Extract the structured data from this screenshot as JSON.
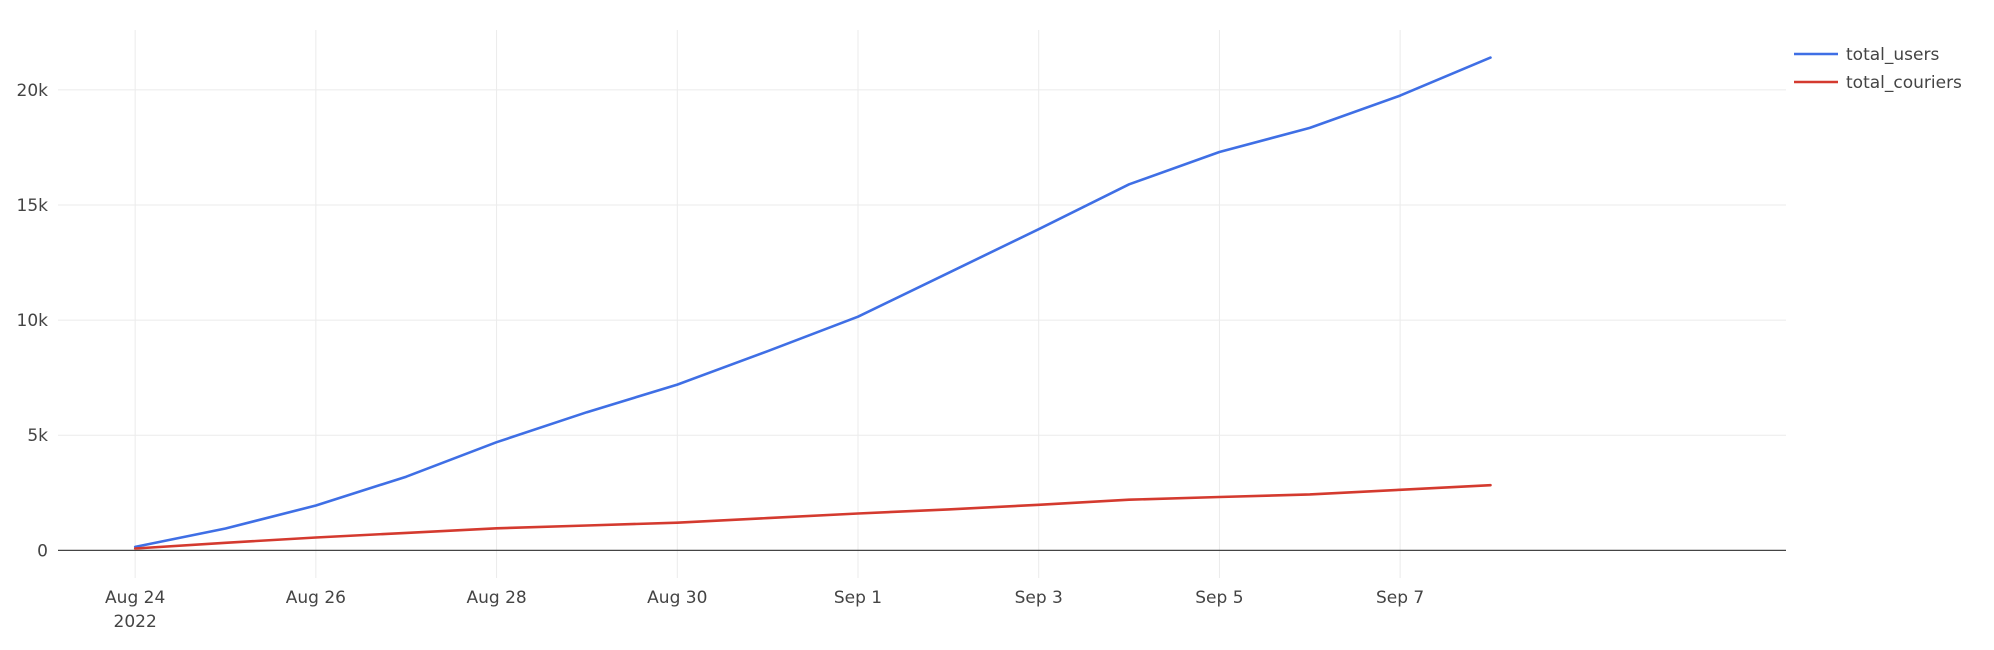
{
  "chart_data": {
    "type": "line",
    "x": [
      "2022-08-24",
      "2022-08-25",
      "2022-08-26",
      "2022-08-27",
      "2022-08-28",
      "2022-08-29",
      "2022-08-30",
      "2022-08-31",
      "2022-09-01",
      "2022-09-02",
      "2022-09-03",
      "2022-09-04",
      "2022-09-05",
      "2022-09-06",
      "2022-09-07",
      "2022-09-08"
    ],
    "series": [
      {
        "name": "total_users",
        "color": "#3f6fe5",
        "values": [
          150,
          950,
          1950,
          3200,
          4700,
          6000,
          7200,
          8650,
          10150,
          12050,
          13950,
          15900,
          17300,
          18350,
          19750,
          21400
        ]
      },
      {
        "name": "total_couriers",
        "color": "#d43a2f",
        "values": [
          80,
          330,
          560,
          760,
          960,
          1080,
          1200,
          1400,
          1600,
          1780,
          1980,
          2200,
          2320,
          2430,
          2630,
          2830
        ]
      }
    ],
    "title": "",
    "xlabel": "",
    "ylabel": "",
    "xlim": [
      "2022-08-23T03:30",
      "2022-09-11T06:30"
    ],
    "ylim": [
      -1200,
      22600
    ],
    "yticks": [
      0,
      5000,
      10000,
      15000,
      20000
    ],
    "ytick_labels": [
      "0",
      "5k",
      "10k",
      "15k",
      "20k"
    ],
    "xticks": [
      "2022-08-24",
      "2022-08-26",
      "2022-08-28",
      "2022-08-30",
      "2022-09-01",
      "2022-09-03",
      "2022-09-05",
      "2022-09-07"
    ],
    "xtick_labels": [
      "Aug 24",
      "Aug 26",
      "Aug 28",
      "Aug 30",
      "Sep 1",
      "Sep 3",
      "Sep 5",
      "Sep 7"
    ],
    "xtick_sublabel": "2022",
    "grid": true,
    "legend": "top-right"
  }
}
